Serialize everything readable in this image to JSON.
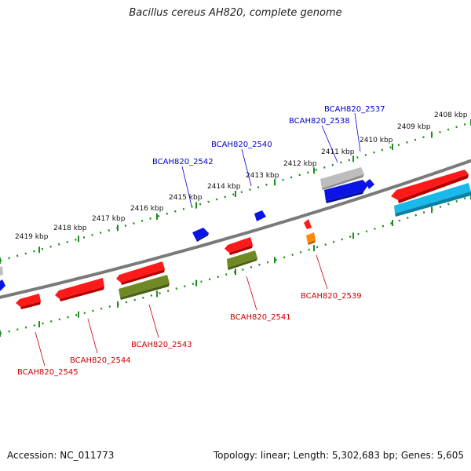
{
  "title": "Bacillus cereus AH820, complete genome",
  "footer": {
    "accession": "Accession: NC_011773",
    "summary": "Topology: linear; Length: 5,302,683 bp; Genes: 5,605"
  },
  "colors": {
    "axis": "#7a7a7a",
    "scale": "#1e8c1e",
    "plus_label": "#0000cc",
    "minus_label": "#cc0000",
    "red_gene": "#ff1a1a",
    "blue_gene": "#0a14e6",
    "gray_gene": "#bdbdbd",
    "olive_gene": "#6f8a24",
    "cyan_gene": "#19b9ea",
    "orange_gene": "#ff8a00"
  },
  "scale_labels": [
    "2408 kbp",
    "2409 kbp",
    "2410 kbp",
    "2411 kbp",
    "2412 kbp",
    "2413 kbp",
    "2414 kbp",
    "2415 kbp",
    "2416 kbp",
    "2417 kbp",
    "2418 kbp",
    "2419 kbp"
  ],
  "plus_gene_labels": [
    "BCAH820_2537",
    "BCAH820_2538",
    "BCAH820_2540",
    "BCAH820_2542"
  ],
  "minus_gene_labels": [
    "BCAH820_2539",
    "BCAH820_2541",
    "BCAH820_2543",
    "BCAH820_2544",
    "BCAH820_2545"
  ]
}
